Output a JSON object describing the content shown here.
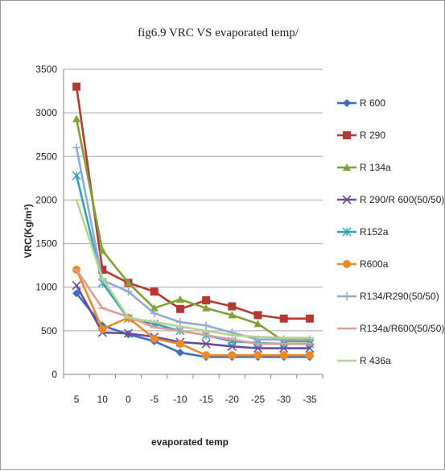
{
  "chart_data": {
    "type": "line",
    "title": "fig6.9 VRC VS evaporated temp/",
    "xlabel": "evaporated temp",
    "ylabel": "VRC(Kg/m³)",
    "categories": [
      "5",
      "10",
      "0",
      "-5",
      "-10",
      "-15",
      "-20",
      "-25",
      "-30",
      "-35"
    ],
    "yticks": [
      "0",
      "500",
      "1000",
      "1500",
      "2000",
      "2500",
      "3000",
      "3500"
    ],
    "ylim": [
      0,
      3500
    ],
    "grid": "horizontal",
    "legend_position": "right",
    "series": [
      {
        "name": "R 600",
        "color": "#3a6fc0",
        "marker": "diamond",
        "values": [
          930,
          560,
          460,
          380,
          250,
          200,
          200,
          200,
          200,
          200
        ]
      },
      {
        "name": "R 290",
        "color": "#b23a32",
        "marker": "square",
        "values": [
          3300,
          1200,
          1050,
          950,
          750,
          850,
          780,
          680,
          640,
          640
        ]
      },
      {
        "name": "R 134a",
        "color": "#7fa13a",
        "marker": "triangle",
        "values": [
          2930,
          1420,
          1050,
          760,
          860,
          760,
          680,
          580,
          380,
          380
        ]
      },
      {
        "name": "R 290/R 600(50/50)",
        "color": "#6a4d9c",
        "marker": "x",
        "values": [
          1020,
          480,
          470,
          430,
          370,
          350,
          320,
          300,
          300,
          300
        ]
      },
      {
        "name": "R152a",
        "color": "#34a0ba",
        "marker": "star",
        "values": [
          2280,
          1050,
          640,
          580,
          500,
          450,
          380,
          360,
          350,
          350
        ]
      },
      {
        "name": "R600a",
        "color": "#ec8a2a",
        "marker": "circle",
        "values": [
          1200,
          520,
          650,
          410,
          350,
          220,
          220,
          220,
          220,
          220
        ]
      },
      {
        "name": "R134/R290(50/50)",
        "color": "#93a9d6",
        "marker": "plus",
        "values": [
          2600,
          1080,
          950,
          700,
          600,
          560,
          480,
          400,
          400,
          400
        ]
      },
      {
        "name": "R134a/R600(50/50)",
        "color": "#dc9d9a",
        "marker": "dash",
        "values": [
          1200,
          760,
          660,
          540,
          500,
          450,
          400,
          350,
          350,
          350
        ]
      },
      {
        "name": "R 436a",
        "color": "#b6d291",
        "marker": "dash",
        "values": [
          2000,
          1100,
          650,
          600,
          550,
          500,
          450,
          430,
          420,
          420
        ]
      }
    ]
  }
}
